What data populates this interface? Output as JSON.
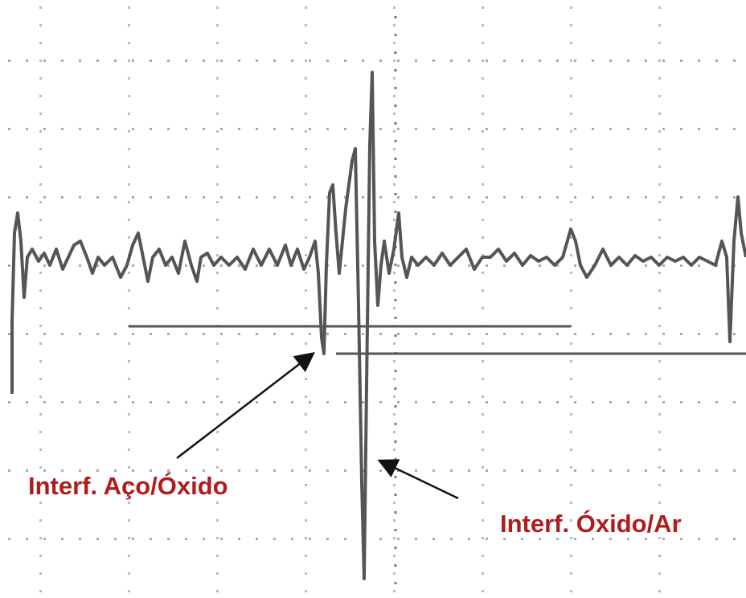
{
  "annotations": [
    {
      "label": "Interf. Aço/Óxido"
    },
    {
      "label": "Interf. Óxido/Ar"
    }
  ]
}
